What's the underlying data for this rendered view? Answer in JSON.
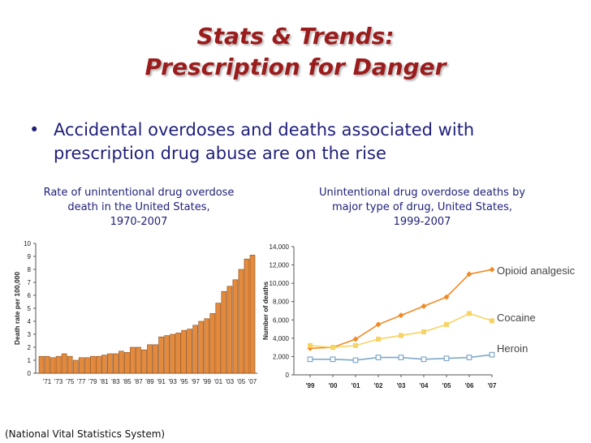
{
  "title": {
    "line1": "Stats & Trends:",
    "line2": "Prescription for Danger"
  },
  "bullet": {
    "marker": "•",
    "text": "Accidental overdoses and deaths associated with prescription drug abuse are on the rise"
  },
  "source": "(National Vital Statistics System)",
  "colors": {
    "title": "#9b1c1c",
    "bullet": "#1f1f7a",
    "bar": "#e48a3c",
    "opioid": "#f08a24",
    "cocaine": "#f7d264",
    "heroin": "#7fa8c9"
  },
  "chart_data": [
    {
      "type": "bar",
      "caption": [
        "Rate of unintentional drug overdose",
        "death in the United States,",
        "1970-2007"
      ],
      "title": "Rate of unintentional drug overdose death in the United States, 1970-2007",
      "xlabel": "",
      "ylabel": "Death rate per 100,000",
      "ylim": [
        0,
        10
      ],
      "yticks": [
        0,
        1,
        2,
        3,
        4,
        5,
        6,
        7,
        8,
        9,
        10
      ],
      "xtick_labels": [
        "'71",
        "'73",
        "'75",
        "'77",
        "'79",
        "'81",
        "'83",
        "'85",
        "'87",
        "'89",
        "'91",
        "'93",
        "'95",
        "'97",
        "'99",
        "'01",
        "'03",
        "'05",
        "'07"
      ],
      "categories": [
        "1970",
        "1971",
        "1972",
        "1973",
        "1974",
        "1975",
        "1976",
        "1977",
        "1978",
        "1979",
        "1980",
        "1981",
        "1982",
        "1983",
        "1984",
        "1985",
        "1986",
        "1987",
        "1988",
        "1989",
        "1990",
        "1991",
        "1992",
        "1993",
        "1994",
        "1995",
        "1996",
        "1997",
        "1998",
        "1999",
        "2000",
        "2001",
        "2002",
        "2003",
        "2004",
        "2005",
        "2006",
        "2007"
      ],
      "values": [
        1.3,
        1.3,
        1.2,
        1.3,
        1.5,
        1.3,
        1.0,
        1.2,
        1.2,
        1.3,
        1.3,
        1.4,
        1.5,
        1.5,
        1.7,
        1.6,
        2.0,
        2.0,
        1.8,
        2.2,
        2.2,
        2.8,
        2.9,
        3.0,
        3.1,
        3.3,
        3.4,
        3.7,
        4.0,
        4.2,
        4.6,
        5.4,
        6.3,
        6.7,
        7.2,
        8.0,
        8.8,
        9.1
      ]
    },
    {
      "type": "line",
      "caption": [
        "Unintentional drug overdose deaths by",
        "major type of drug, United States,",
        "1999-2007"
      ],
      "title": "Unintentional drug overdose deaths by major type of drug, United States, 1999-2007",
      "xlabel": "",
      "ylabel": "Number of deaths",
      "ylim": [
        0,
        14000
      ],
      "ytick_labels": [
        "0",
        "2,000",
        "4,000",
        "6,000",
        "8,000",
        "10,000",
        "12,000",
        "14,000"
      ],
      "yticks": [
        0,
        2000,
        4000,
        6000,
        8000,
        10000,
        12000,
        14000
      ],
      "x": [
        "'99",
        "'00",
        "'01",
        "'02",
        "'03",
        "'04",
        "'05",
        "'06",
        "'07"
      ],
      "series": [
        {
          "name": "Opioid analgesic",
          "values": [
            2900,
            3000,
            3900,
            5500,
            6500,
            7500,
            8500,
            11000,
            11500
          ]
        },
        {
          "name": "Cocaine",
          "values": [
            3200,
            3000,
            3200,
            3900,
            4300,
            4700,
            5500,
            6700,
            5900
          ]
        },
        {
          "name": "Heroin",
          "values": [
            1700,
            1700,
            1600,
            1900,
            1900,
            1700,
            1800,
            1900,
            2200
          ]
        }
      ]
    }
  ]
}
